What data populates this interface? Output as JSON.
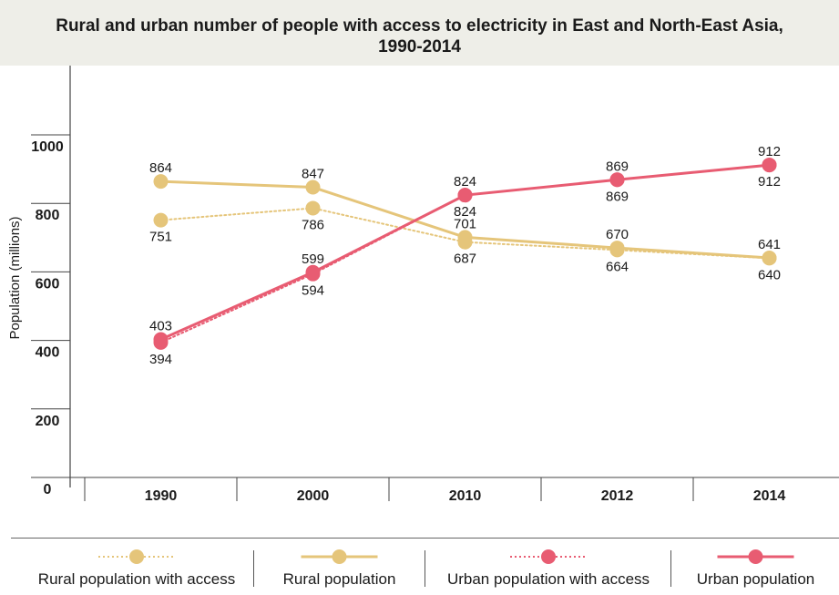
{
  "header": {
    "title_line1": "Rural and urban number of people with access to electricity in East and North-East Asia,",
    "title_line2": "1990-2014"
  },
  "colors": {
    "rural": "#e5c57a",
    "urban": "#e85c72",
    "axis": "#444444",
    "title_band": "#eeeee8"
  },
  "chart_data": {
    "type": "line",
    "title": "Rural and urban number of people with access to electricity in East and North-East Asia, 1990-2014",
    "ylabel": "Population (millions)",
    "xlabel": "",
    "ylim": [
      0,
      1000
    ],
    "y_ticks": [
      "0",
      "200",
      "400",
      "600",
      "800",
      "1000"
    ],
    "categories": [
      "1990",
      "2000",
      "2010",
      "2012",
      "2014"
    ],
    "legend_position": "bottom",
    "series": [
      {
        "name": "Rural population with access",
        "style": "dotted",
        "color": "#e5c57a",
        "values": [
          751,
          786,
          687,
          664,
          640
        ],
        "labels": [
          "751",
          "786",
          "687",
          "664",
          "640"
        ]
      },
      {
        "name": "Rural population",
        "style": "solid",
        "color": "#e5c57a",
        "values": [
          864,
          847,
          701,
          670,
          641
        ],
        "labels": [
          "864",
          "847",
          "701",
          "670",
          "641"
        ]
      },
      {
        "name": "Urban population with access",
        "style": "dotted",
        "color": "#e85c72",
        "values": [
          394,
          594,
          824,
          869,
          912
        ],
        "labels": [
          "394",
          "594",
          "824",
          "869",
          "912"
        ]
      },
      {
        "name": "Urban population",
        "style": "solid",
        "color": "#e85c72",
        "values": [
          403,
          599,
          824,
          869,
          912
        ],
        "labels": [
          "403",
          "599",
          "824",
          "869",
          "912"
        ]
      }
    ]
  }
}
